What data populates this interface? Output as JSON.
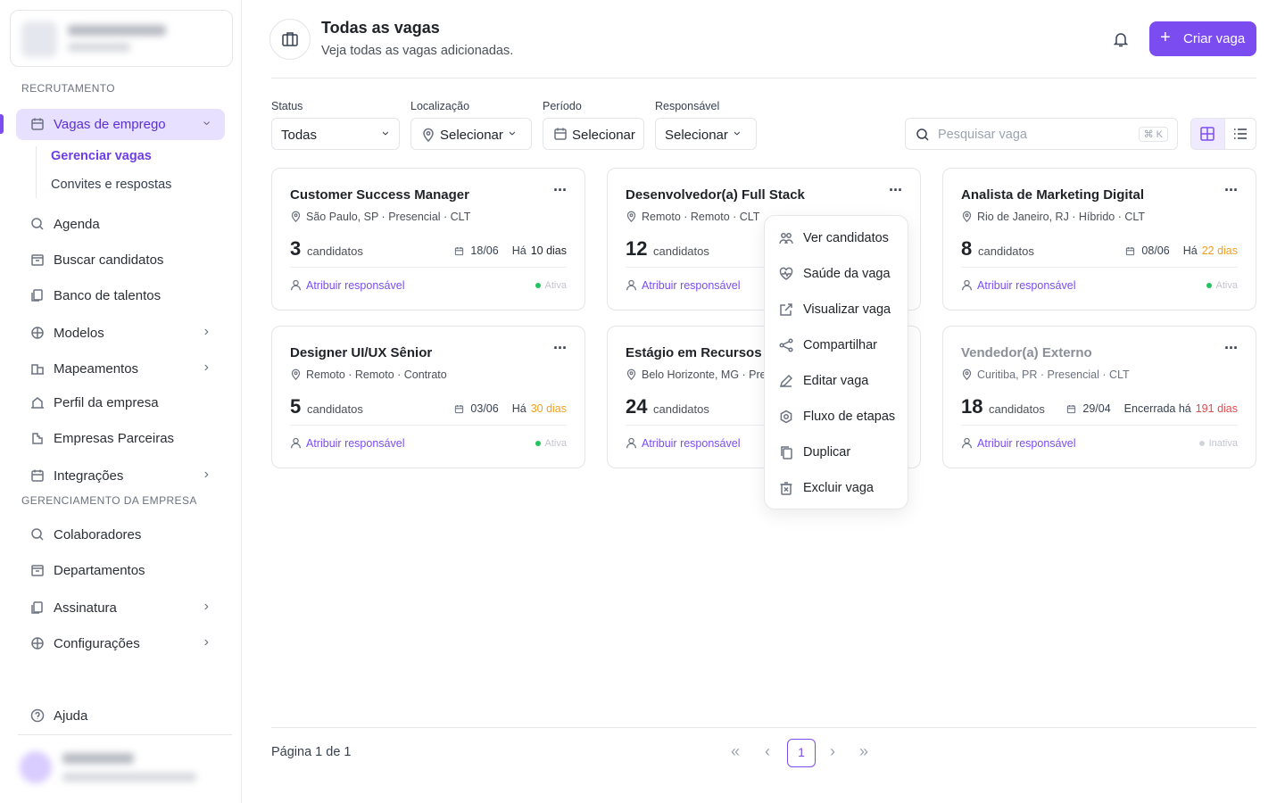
{
  "sidebar": {
    "sections": [
      {
        "title": "RECRUTAMENTO",
        "items": [
          {
            "label": "Vagas de emprego",
            "expandable": true,
            "active": true,
            "children": [
              "Gerenciar vagas",
              "Convites e respostas"
            ]
          },
          {
            "label": "Agenda",
            "expandable": false
          },
          {
            "label": "Buscar candidatos",
            "expandable": false
          },
          {
            "label": "Banco de talentos",
            "expandable": false
          },
          {
            "label": "Modelos",
            "expandable": true
          },
          {
            "label": "Mapeamentos",
            "expandable": true
          },
          {
            "label": "Perfil da empresa",
            "expandable": false
          },
          {
            "label": "Empresas Parceiras",
            "expandable": false
          },
          {
            "label": "Integrações",
            "expandable": true
          }
        ]
      },
      {
        "title": "GERENCIAMENTO DA EMPRESA",
        "items": [
          {
            "label": "Colaboradores",
            "expandable": false
          },
          {
            "label": "Departamentos",
            "expandable": false
          },
          {
            "label": "Assinatura",
            "expandable": true
          },
          {
            "label": "Configurações",
            "expandable": true
          }
        ]
      }
    ],
    "help": "Ajuda"
  },
  "header": {
    "title": "Todas as vagas",
    "subtitle": "Veja todas as vagas adicionadas.",
    "button": "Criar vaga"
  },
  "filters": [
    {
      "label": "Status",
      "value": "Todas"
    },
    {
      "label": "Localização",
      "value": "Selecionar"
    },
    {
      "label": "Período",
      "value": "Selecionar"
    },
    {
      "label": "Responsável",
      "value": "Selecionar"
    }
  ],
  "search": {
    "placeholder": "Pesquisar vaga",
    "shortcut": "⌘ K"
  },
  "cards": [
    {
      "title": "Customer Success Manager",
      "location": "São Paulo, SP · Presencial · CLT",
      "count": 3,
      "count_label": "candidatos",
      "date": "18/06",
      "age_prefix": "Há",
      "age": "10 dias",
      "age_color": "#1f2328",
      "assign": "Atribuir responsável",
      "status": "Ativa",
      "status_color": "#22c55e",
      "title_color": "#1f2328"
    },
    {
      "title": "Desenvolvedor(a) Full Stack",
      "location": "Remoto · Remoto · CLT",
      "count": 12,
      "count_label": "candidatos",
      "assign": "Atribuir responsável",
      "title_color": "#1f2328"
    },
    {
      "title": "Analista de Marketing Digital",
      "location": "Rio de Janeiro, RJ · Híbrido · CLT",
      "count": 8,
      "count_label": "candidatos",
      "date": "08/06",
      "age_prefix": "Há",
      "age": "22 dias",
      "age_color": "#f0a020",
      "assign": "Atribuir responsável",
      "status": "Ativa",
      "status_color": "#22c55e",
      "title_color": "#1f2328"
    },
    {
      "title": "Designer UI/UX Sênior",
      "location": "Remoto · Remoto · Contrato",
      "count": 5,
      "count_label": "candidatos",
      "date": "03/06",
      "age_prefix": "Há",
      "age": "30 dias",
      "age_color": "#f0a020",
      "assign": "Atribuir responsável",
      "status": "Ativa",
      "status_color": "#22c55e",
      "title_color": "#1f2328"
    },
    {
      "title": "Estágio em Recursos",
      "location": "Belo Horizonte, MG · Pre",
      "count": 24,
      "count_label": "candidatos",
      "assign": "Atribuir responsável",
      "title_color": "#1f2328"
    },
    {
      "title": "Vendedor(a) Externo",
      "location": "Curitiba, PR · Presencial · CLT",
      "count": 18,
      "count_label": "candidatos",
      "date": "29/04",
      "age_prefix": "Encerrada há",
      "age": "191 dias",
      "age_color": "#e5484d",
      "assign": "Atribuir responsável",
      "status": "Inativa",
      "status_color": "#d1d5db",
      "title_color": "#8a8f98"
    }
  ],
  "menu": [
    "Ver candidatos",
    "Saúde da vaga",
    "Visualizar vaga",
    "Compartilhar",
    "Editar vaga",
    "Fluxo de etapas",
    "Duplicar",
    "Excluir vaga"
  ],
  "pagination": {
    "summary": "Página 1 de 1",
    "current": "1"
  }
}
